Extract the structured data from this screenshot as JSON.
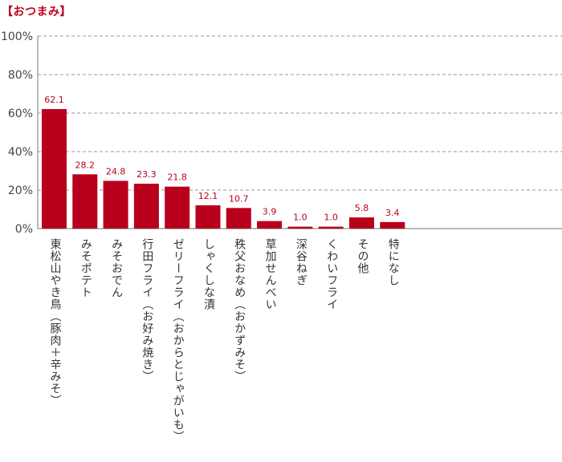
{
  "chart_data": {
    "type": "bar",
    "title": "【おつまみ】",
    "xlabel": "",
    "ylabel": "",
    "ylim": [
      0,
      100
    ],
    "yticks": [
      "0%",
      "20%",
      "40%",
      "60%",
      "80%",
      "100%"
    ],
    "grid": true,
    "categories": [
      "東松山やき鳥（豚肉＋辛みそ）",
      "みそポテト",
      "みそおでん",
      "行田フライ（お好み焼き）",
      "ゼリーフライ（おからとじゃがいも）",
      "しゃくしな漬",
      "秩父おなめ（おかずみそ）",
      "草加せんべい",
      "深谷ねぎ",
      "くわいフライ",
      "その他",
      "特になし"
    ],
    "values": [
      62.1,
      28.2,
      24.8,
      23.3,
      21.8,
      12.1,
      10.7,
      3.9,
      1.0,
      1.0,
      5.8,
      3.4
    ],
    "value_labels": [
      "62.1",
      "28.2",
      "24.8",
      "23.3",
      "21.8",
      "12.1",
      "10.7",
      "3.9",
      "1.0",
      "1.0",
      "5.8",
      "3.4"
    ],
    "bar_color": "#b8001c"
  }
}
